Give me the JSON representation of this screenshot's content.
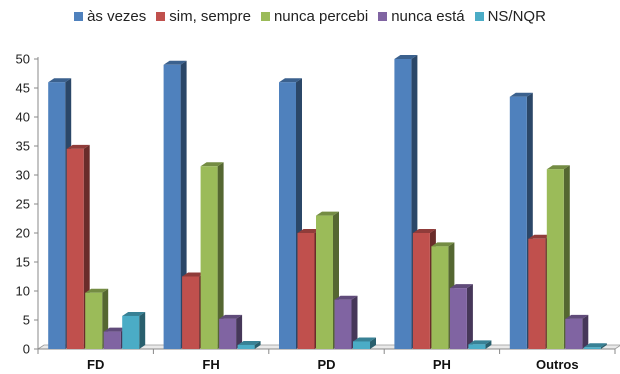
{
  "chart_data": {
    "type": "bar",
    "categories": [
      "FD",
      "FH",
      "PD",
      "PH",
      "Outros"
    ],
    "series": [
      {
        "name": "às vezes",
        "color": "#4F81BD",
        "values": [
          46,
          49,
          46,
          50,
          43.5
        ]
      },
      {
        "name": "sim, sempre",
        "color": "#C0504D",
        "values": [
          34.5,
          12.5,
          20,
          20,
          19
        ]
      },
      {
        "name": "nunca percebi",
        "color": "#9BBB59",
        "values": [
          9.7,
          31.5,
          23,
          17.7,
          31
        ]
      },
      {
        "name": "nunca está",
        "color": "#8064A2",
        "values": [
          3,
          5.2,
          8.5,
          10.5,
          5.2
        ]
      },
      {
        "name": "NS/NQR",
        "color": "#4BACC6",
        "values": [
          5.7,
          0.7,
          1.3,
          0.8,
          0.3
        ]
      }
    ],
    "yticks": [
      "0",
      "5",
      "10",
      "15",
      "20",
      "25",
      "30",
      "35",
      "40",
      "45",
      "50"
    ],
    "ylim": [
      0,
      50
    ],
    "grid": false,
    "legend": "top",
    "title": "",
    "xlabel": "",
    "ylabel": ""
  }
}
